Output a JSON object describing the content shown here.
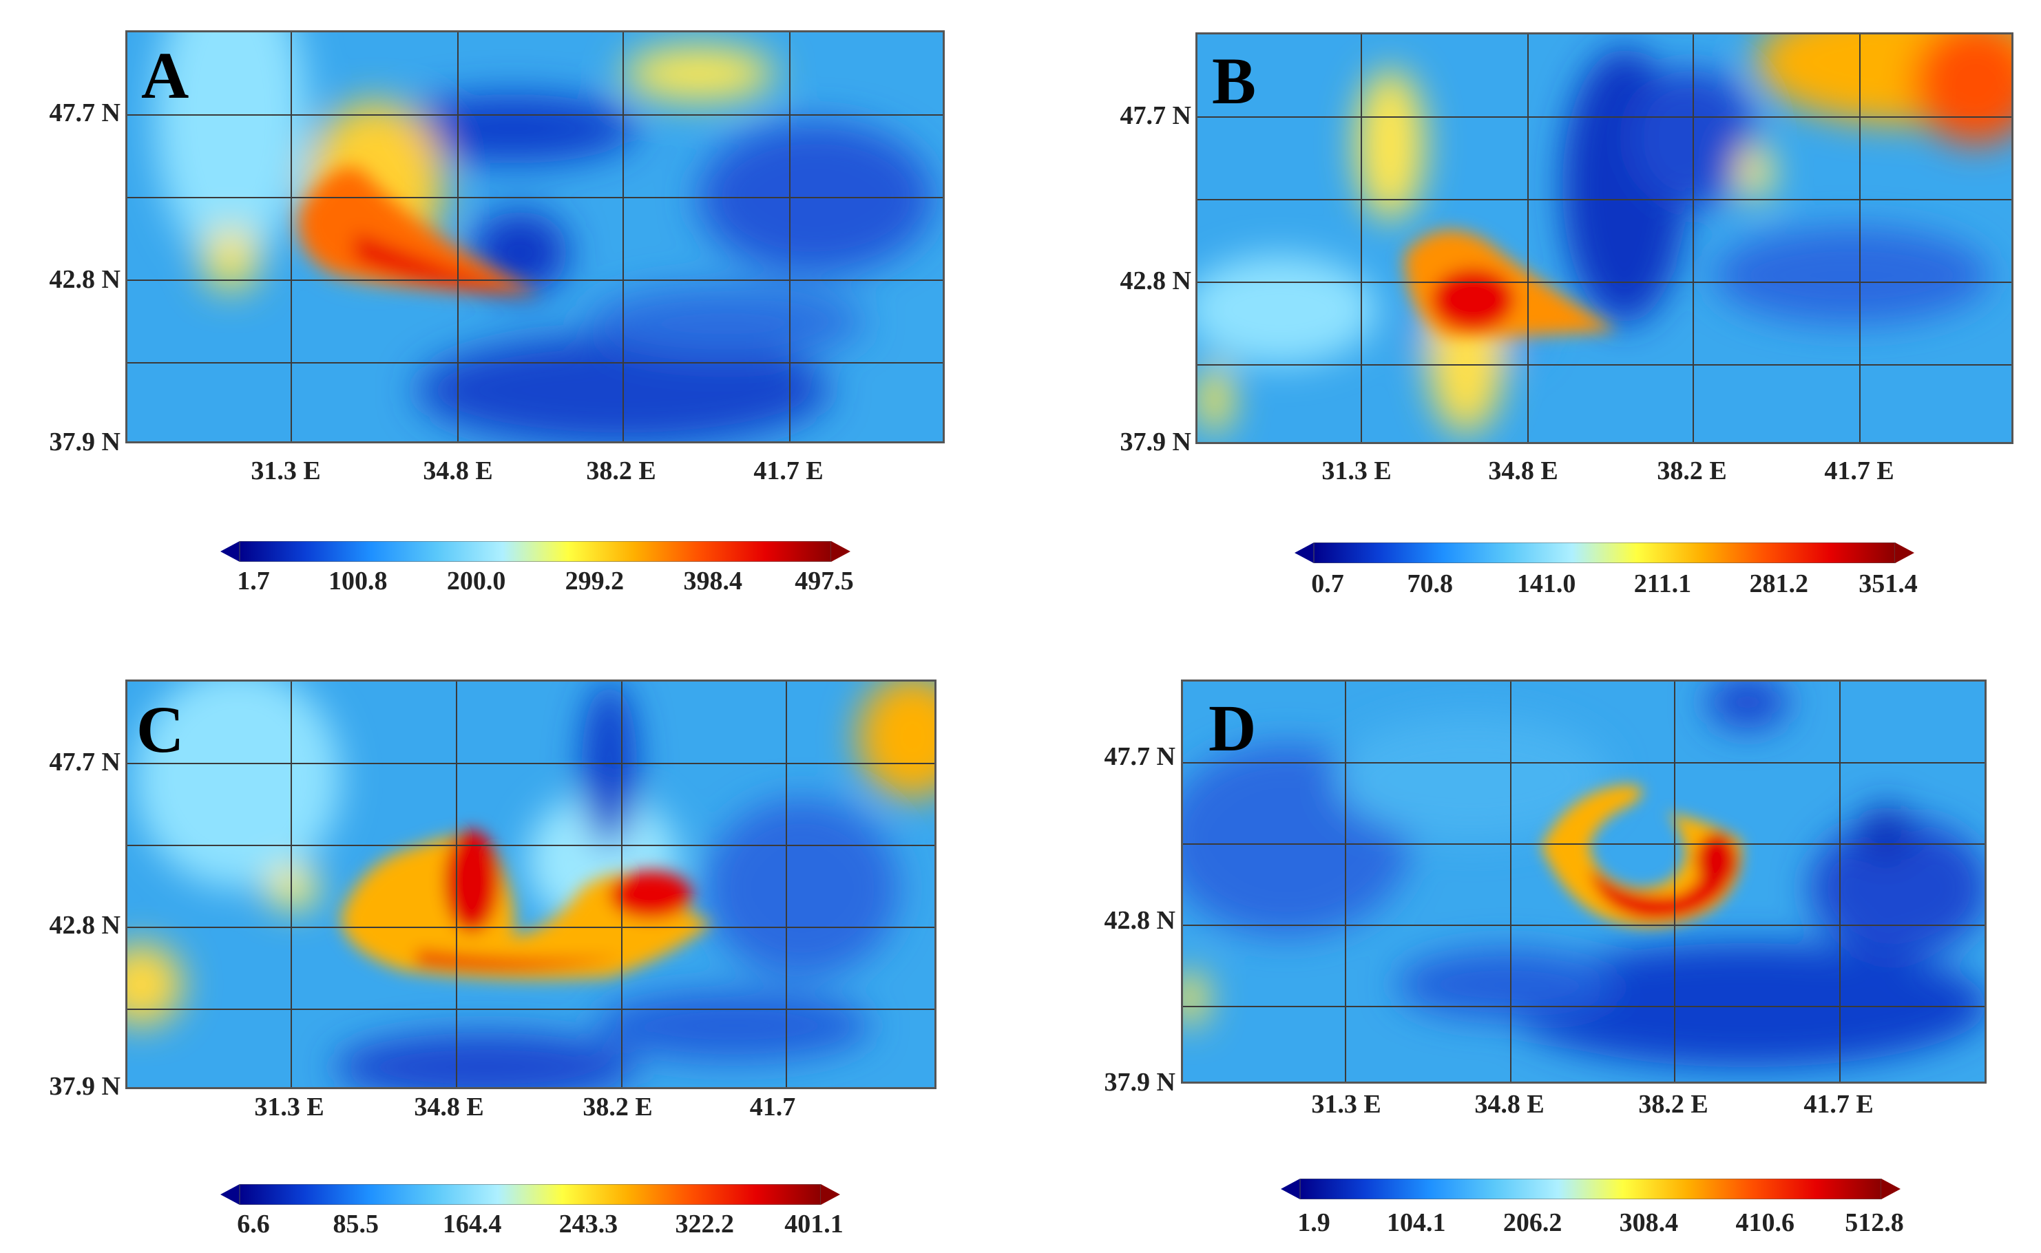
{
  "panels": [
    {
      "letter": "A",
      "lat_labels": [
        "47.7 N",
        "42.8 N",
        "37.9 N"
      ],
      "lon_labels": [
        "31.3 E",
        "34.8 E",
        "38.2 E",
        "41.7 E"
      ],
      "colorbar_ticks": [
        "1.7",
        "100.8",
        "200.0",
        "299.2",
        "398.4",
        "497.5"
      ]
    },
    {
      "letter": "B",
      "lat_labels": [
        "47.7 N",
        "42.8 N",
        "37.9 N"
      ],
      "lon_labels": [
        "31.3 E",
        "34.8 E",
        "38.2 E",
        "41.7 E"
      ],
      "colorbar_ticks": [
        "0.7",
        "70.8",
        "141.0",
        "211.1",
        "281.2",
        "351.4"
      ]
    },
    {
      "letter": "C",
      "lat_labels": [
        "47.7 N",
        "42.8 N",
        "37.9 N"
      ],
      "lon_labels": [
        "31.3 E",
        "34.8 E",
        "38.2 E",
        "41.7"
      ],
      "colorbar_ticks": [
        "6.6",
        "85.5",
        "164.4",
        "243.3",
        "322.2",
        "401.1"
      ]
    },
    {
      "letter": "D",
      "lat_labels": [
        "47.7 N",
        "42.8 N",
        "37.9 N"
      ],
      "lon_labels": [
        "31.3 E",
        "34.8 E",
        "38.2 E",
        "41.7 E"
      ],
      "colorbar_ticks": [
        "1.9",
        "104.1",
        "206.2",
        "308.4",
        "410.6",
        "512.8"
      ]
    }
  ],
  "colors": {
    "background": "#ffffff",
    "grid": "#3a3a3a",
    "ramp": [
      "#00008b",
      "#0a3fd6",
      "#1e90ff",
      "#5ac8fa",
      "#aef0ff",
      "#ffff40",
      "#ffb000",
      "#ff5000",
      "#e60000",
      "#8b0000"
    ]
  }
}
